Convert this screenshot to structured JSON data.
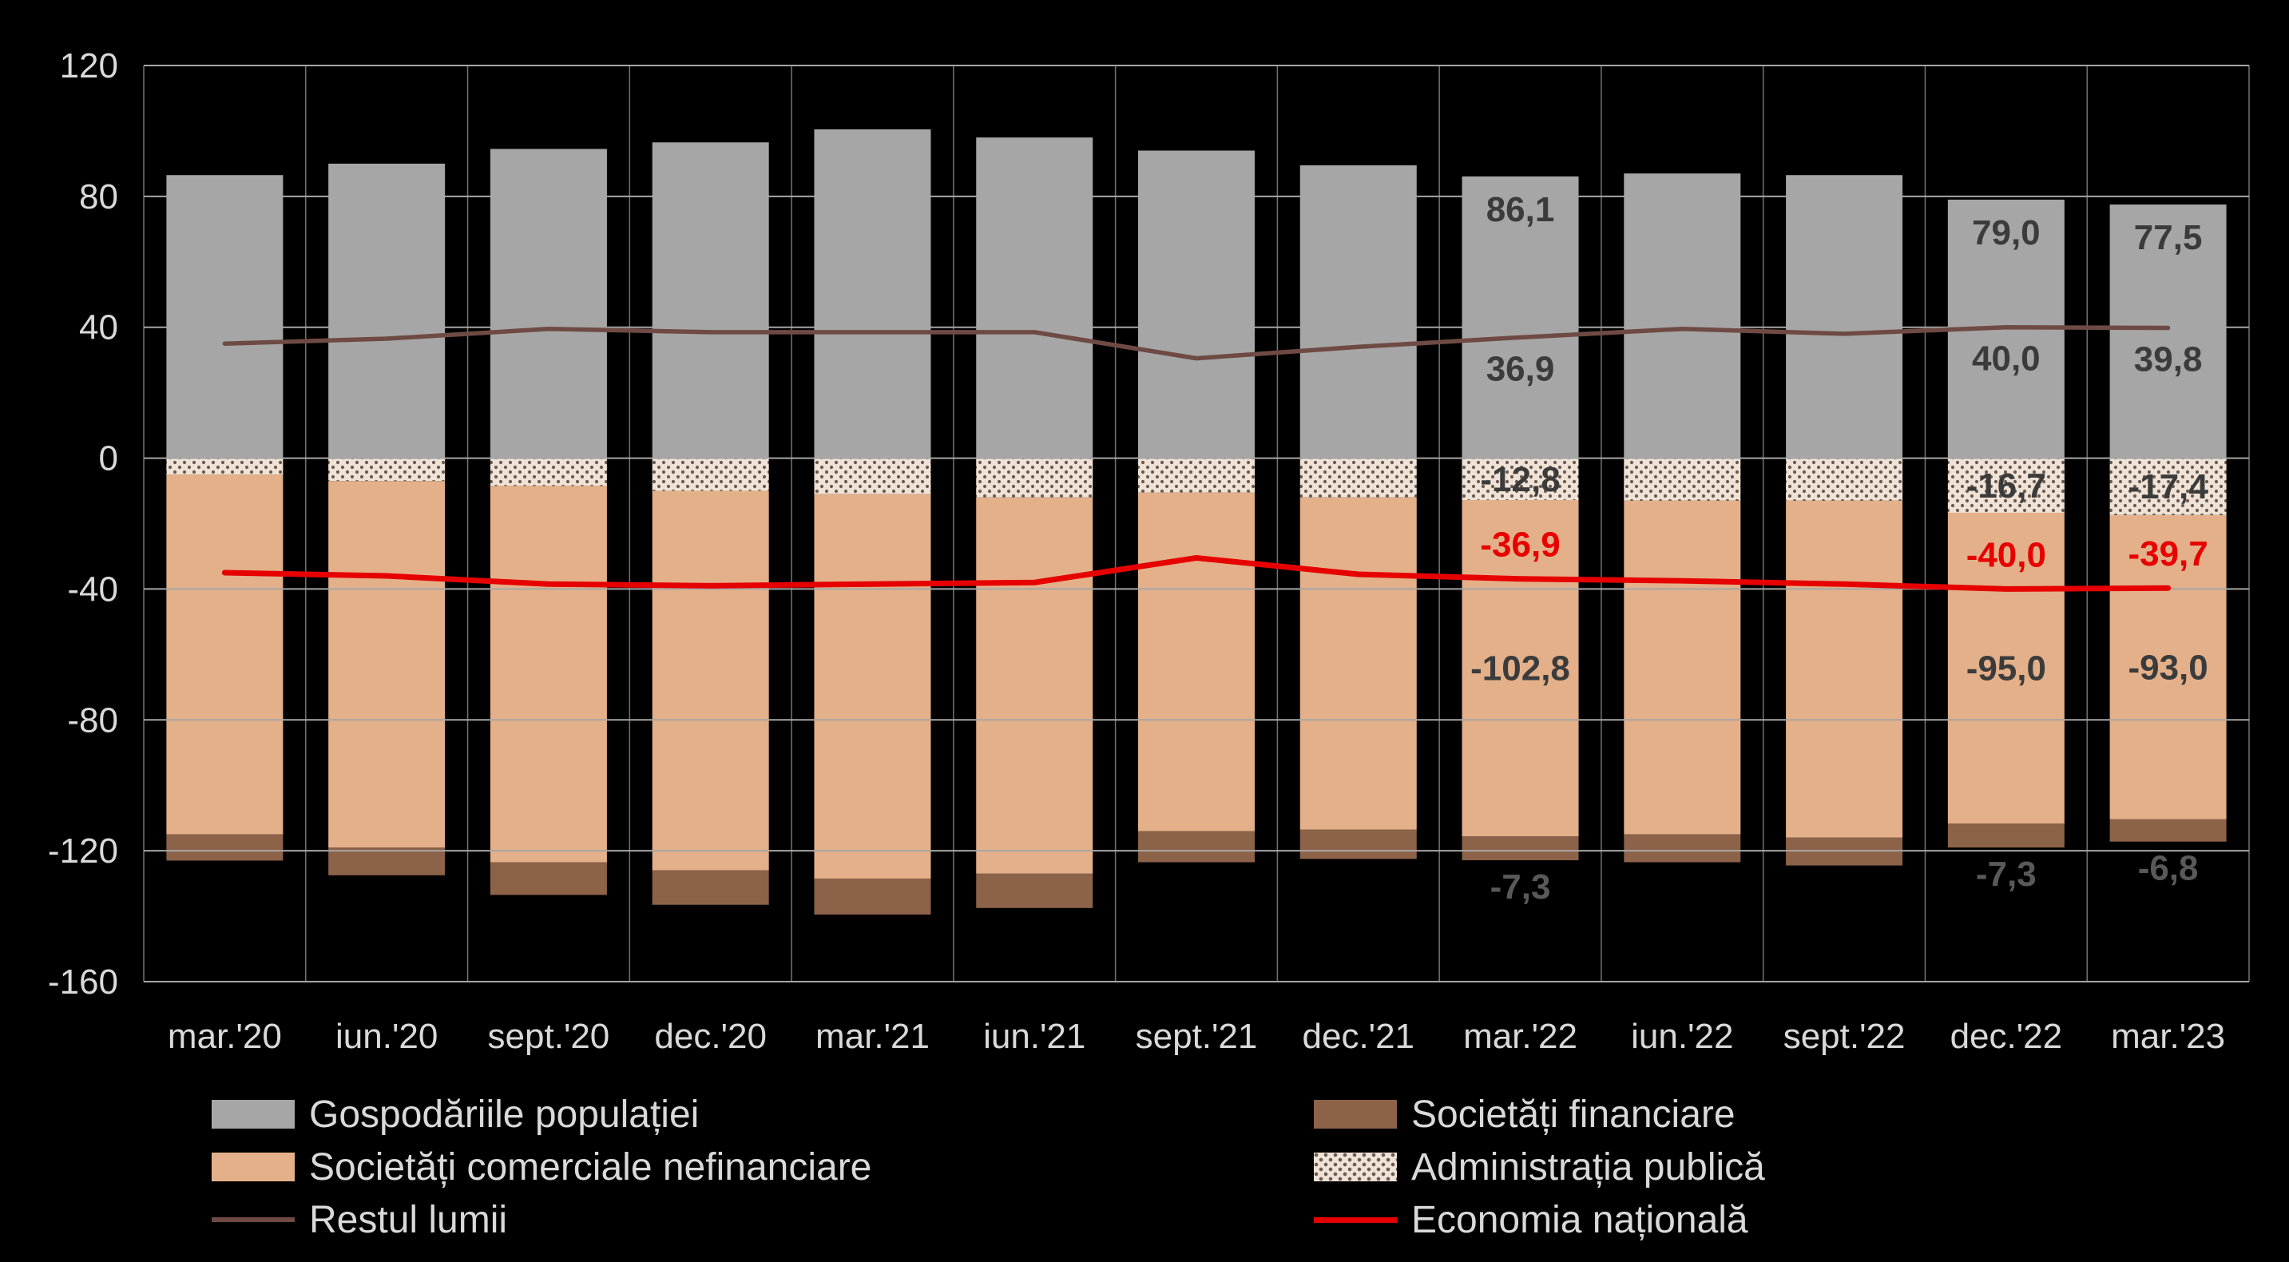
{
  "page": {
    "background_color": "#000000",
    "axis_text_color": "#d9d9d9"
  },
  "chart_data": {
    "type": "bar",
    "subtype": "stacked-bars-with-lines",
    "title": "",
    "categories": [
      "mar.'20",
      "iun.'20",
      "sept.'20",
      "dec.'20",
      "mar.'21",
      "iun.'21",
      "sept.'21",
      "dec.'21",
      "mar.'22",
      "iun.'22",
      "sept.'22",
      "dec.'22",
      "mar.'23"
    ],
    "y_axis": {
      "min": -160,
      "max": 120,
      "step": 40,
      "tick_labels": [
        "120",
        "80",
        "40",
        "0",
        "-40",
        "-80",
        "-120",
        "-160"
      ]
    },
    "grid": {
      "horizontal": true,
      "vertical": true,
      "gridline_color": "#a6a6a6"
    },
    "stack_order_negative": [
      "government",
      "nonfinancial",
      "financial"
    ],
    "series": [
      {
        "id": "households",
        "name": "Gospodăriile populației",
        "kind": "bar",
        "color": "#a6a6a6",
        "values": [
          86.5,
          90.0,
          94.5,
          96.5,
          100.5,
          98.0,
          94.0,
          89.5,
          86.1,
          87.0,
          86.5,
          79.0,
          77.5
        ],
        "labels": {
          "8": "86,1",
          "11": "79,0",
          "12": "77,5"
        },
        "label_color": "#3b3b3b"
      },
      {
        "id": "government",
        "name": "Administrația publică",
        "kind": "bar",
        "pattern": "dots",
        "pattern_base": "#efe2d6",
        "pattern_dot": "#6b5a50",
        "values": [
          -5.0,
          -7.0,
          -8.5,
          -10.0,
          -11.0,
          -12.0,
          -10.5,
          -12.0,
          -12.8,
          -13.0,
          -13.0,
          -16.7,
          -17.4
        ],
        "labels": {
          "8": "-12,8",
          "11": "-16,7",
          "12": "-17,4"
        },
        "label_color": "#3b3b3b"
      },
      {
        "id": "nonfinancial",
        "name": "Societăți comerciale nefinanciare",
        "kind": "bar",
        "color": "#e3b08a",
        "values": [
          -110.0,
          -112.0,
          -115.0,
          -116.0,
          -117.5,
          -115.0,
          -103.5,
          -101.5,
          -102.8,
          -102.0,
          -103.0,
          -95.0,
          -93.0
        ],
        "labels": {
          "8": "-102,8",
          "11": "-95,0",
          "12": "-93,0"
        },
        "label_color": "#3b3b3b"
      },
      {
        "id": "financial",
        "name": "Societăți financiare",
        "kind": "bar",
        "color": "#8c6248",
        "values": [
          -8.0,
          -8.5,
          -10.0,
          -10.5,
          -11.0,
          -10.5,
          -9.5,
          -9.0,
          -7.3,
          -8.5,
          -8.5,
          -7.3,
          -6.8
        ],
        "labels": {
          "8": "-7,3",
          "11": "-7,3",
          "12": "-6,8"
        },
        "label_color": "#595959"
      },
      {
        "id": "restworld",
        "name": "Restul lumii",
        "kind": "line",
        "color": "#6f4a45",
        "values": [
          35.0,
          36.5,
          39.5,
          38.5,
          38.5,
          38.5,
          30.5,
          34.0,
          36.9,
          39.5,
          38.0,
          40.0,
          39.8
        ],
        "labels": {
          "8": "36,9",
          "11": "40,0",
          "12": "39,8"
        },
        "label_color": "#3b3b3b"
      },
      {
        "id": "national",
        "name": "Economia națională",
        "kind": "line",
        "color": "#e60000",
        "values": [
          -35.0,
          -36.0,
          -38.5,
          -39.0,
          -38.5,
          -38.0,
          -30.5,
          -35.5,
          -36.9,
          -37.5,
          -38.5,
          -40.0,
          -39.7
        ],
        "labels": {
          "8": "-36,9",
          "11": "-40,0",
          "12": "-39,7"
        },
        "label_color": "#e60000"
      }
    ],
    "legend": {
      "position": "bottom",
      "columns": [
        [
          "households",
          "nonfinancial",
          "restworld"
        ],
        [
          "financial",
          "government",
          "national"
        ]
      ]
    }
  }
}
